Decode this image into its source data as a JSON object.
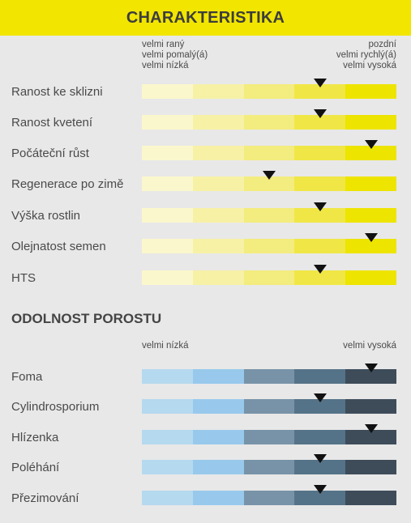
{
  "header": {
    "title": "CHARAKTERISTIKA"
  },
  "characteristics": {
    "legend_left": [
      "velmi raný",
      "velmi pomalý(á)",
      "velmi nízká"
    ],
    "legend_right": [
      "pozdní",
      "velmi rychlý(á)",
      "velmi vysoká"
    ],
    "scale_colors": [
      "#fbf7cc",
      "#f7f1a6",
      "#f3ec7e",
      "#f0e746",
      "#ede400"
    ],
    "marker_color": "#111111",
    "rows": [
      {
        "label": "Ranost ke sklizni",
        "level": 4
      },
      {
        "label": "Ranost kvetení",
        "level": 4
      },
      {
        "label": "Počáteční růst",
        "level": 5
      },
      {
        "label": "Regenerace po zimě",
        "level": 3
      },
      {
        "label": "Výška rostlin",
        "level": 4
      },
      {
        "label": "Olejnatost semen",
        "level": 5
      },
      {
        "label": "HTS",
        "level": 4
      }
    ]
  },
  "resistance": {
    "title": "ODOLNOST POROSTU",
    "legend_left": "velmi nízká",
    "legend_right": "velmi vysoká",
    "scale_colors": [
      "#b5d9ef",
      "#98c9ec",
      "#7893a8",
      "#557388",
      "#3e4c5a"
    ],
    "rows": [
      {
        "label": "Foma",
        "level": 5
      },
      {
        "label": "Cylindrosporium",
        "level": 4
      },
      {
        "label": "Hlízenka",
        "level": 5
      },
      {
        "label": "Poléhání",
        "level": 4
      },
      {
        "label": "Přezimování",
        "level": 4
      }
    ]
  }
}
